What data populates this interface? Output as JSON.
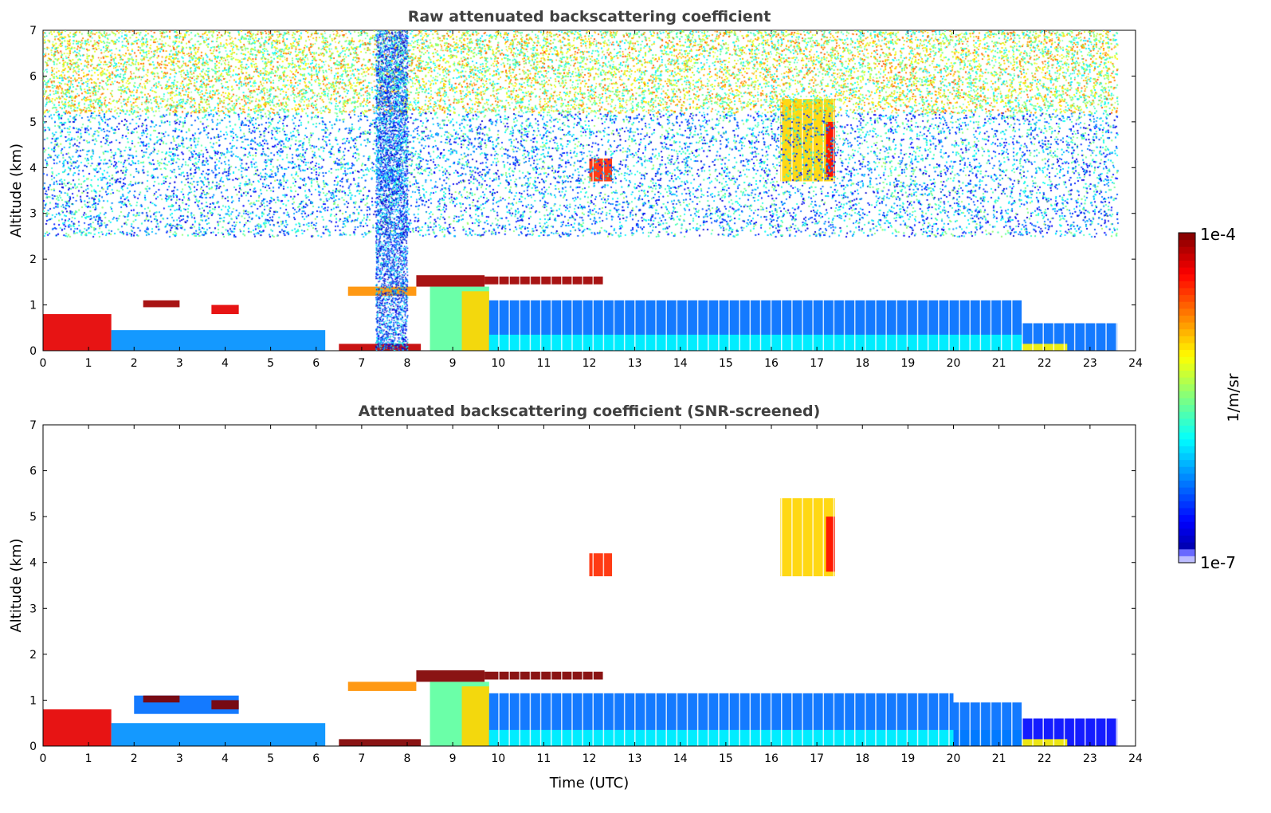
{
  "chart_data": {
    "type": "heatmap",
    "colorbar": {
      "label": "1/m/sr",
      "min_label": "1e-7",
      "max_label": "1e-4",
      "log_min": -7,
      "log_max": -4,
      "scale": "log",
      "colormap": "jet"
    },
    "panels": [
      {
        "title": "Raw attenuated backscattering coefficient",
        "xlabel": "",
        "ylabel": "Altitude (km)",
        "xlim": [
          0,
          24
        ],
        "ylim": [
          0,
          7
        ],
        "xticks": [
          "0",
          "1",
          "2",
          "3",
          "4",
          "5",
          "6",
          "7",
          "8",
          "9",
          "10",
          "11",
          "12",
          "13",
          "14",
          "15",
          "16",
          "17",
          "18",
          "19",
          "20",
          "21",
          "22",
          "23",
          "24"
        ],
        "yticks": [
          "0",
          "1",
          "2",
          "3",
          "4",
          "5",
          "6",
          "7"
        ],
        "noise": true,
        "features": [
          {
            "t0": 0,
            "t1": 23.6,
            "z0": 5.2,
            "z1": 7,
            "log_beta": -5.3,
            "density": 0.55
          },
          {
            "t0": 0,
            "t1": 23.6,
            "z0": 2.5,
            "z1": 5.2,
            "log_beta": -6.1,
            "density": 0.35
          },
          {
            "t0": 7.3,
            "t1": 8.0,
            "z0": 0,
            "z1": 7,
            "log_beta": -6.4,
            "density": 0.6
          },
          {
            "t0": 0,
            "t1": 1.5,
            "z0": 0,
            "z1": 0.8,
            "log_beta": -4.3
          },
          {
            "t0": 1.5,
            "t1": 6.2,
            "z0": 0,
            "z1": 0.45,
            "log_beta": -6.2
          },
          {
            "t0": 2.2,
            "t1": 3.0,
            "z0": 0.95,
            "z1": 1.1,
            "log_beta": -4.1
          },
          {
            "t0": 3.7,
            "t1": 4.3,
            "z0": 0.8,
            "z1": 1.0,
            "log_beta": -4.3
          },
          {
            "t0": 6.7,
            "t1": 8.2,
            "z0": 1.2,
            "z1": 1.4,
            "log_beta": -4.8
          },
          {
            "t0": 6.5,
            "t1": 8.3,
            "z0": 0,
            "z1": 0.15,
            "log_beta": -4.2
          },
          {
            "t0": 8.5,
            "t1": 9.8,
            "z0": 0,
            "z1": 1.4,
            "log_beta": -5.6
          },
          {
            "t0": 9.2,
            "t1": 9.8,
            "z0": 0,
            "z1": 1.3,
            "log_beta": -5.0
          },
          {
            "t0": 8.2,
            "t1": 9.7,
            "z0": 1.4,
            "z1": 1.65,
            "log_beta": -4.1
          },
          {
            "t0": 9.7,
            "t1": 12.3,
            "z0": 1.45,
            "z1": 1.62,
            "log_beta": -4.1
          },
          {
            "t0": 9.8,
            "t1": 21.5,
            "z0": 0,
            "z1": 1.1,
            "log_beta": -6.3
          },
          {
            "t0": 9.8,
            "t1": 21.5,
            "z0": 0,
            "z1": 0.35,
            "log_beta": -5.9
          },
          {
            "t0": 21.5,
            "t1": 23.6,
            "z0": 0,
            "z1": 0.6,
            "log_beta": -6.3
          },
          {
            "t0": 21.5,
            "t1": 22.5,
            "z0": 0,
            "z1": 0.15,
            "log_beta": -5.1
          },
          {
            "t0": 12.0,
            "t1": 12.5,
            "z0": 3.7,
            "z1": 4.2,
            "log_beta": -4.5
          },
          {
            "t0": 16.2,
            "t1": 17.4,
            "z0": 3.7,
            "z1": 5.5,
            "log_beta": -5.0
          },
          {
            "t0": 17.2,
            "t1": 17.4,
            "z0": 3.8,
            "z1": 5.0,
            "log_beta": -4.4
          }
        ]
      },
      {
        "title": "Attenuated backscattering coefficient (SNR-screened)",
        "xlabel": "Time (UTC)",
        "ylabel": "Altitude (km)",
        "xlim": [
          0,
          24
        ],
        "ylim": [
          0,
          7
        ],
        "xticks": [
          "0",
          "1",
          "2",
          "3",
          "4",
          "5",
          "6",
          "7",
          "8",
          "9",
          "10",
          "11",
          "12",
          "13",
          "14",
          "15",
          "16",
          "17",
          "18",
          "19",
          "20",
          "21",
          "22",
          "23",
          "24"
        ],
        "yticks": [
          "0",
          "1",
          "2",
          "3",
          "4",
          "5",
          "6",
          "7"
        ],
        "noise": false,
        "features": [
          {
            "t0": 0,
            "t1": 1.5,
            "z0": 0,
            "z1": 0.8,
            "log_beta": -4.3
          },
          {
            "t0": 1.5,
            "t1": 6.2,
            "z0": 0,
            "z1": 0.5,
            "log_beta": -6.2
          },
          {
            "t0": 2.0,
            "t1": 4.3,
            "z0": 0.7,
            "z1": 1.1,
            "log_beta": -6.3
          },
          {
            "t0": 2.2,
            "t1": 3.0,
            "z0": 0.95,
            "z1": 1.1,
            "log_beta": -3.8
          },
          {
            "t0": 3.7,
            "t1": 4.3,
            "z0": 0.8,
            "z1": 1.0,
            "log_beta": -3.8
          },
          {
            "t0": 6.7,
            "t1": 8.2,
            "z0": 1.2,
            "z1": 1.4,
            "log_beta": -4.8
          },
          {
            "t0": 6.5,
            "t1": 8.3,
            "z0": 0,
            "z1": 0.15,
            "log_beta": -3.8
          },
          {
            "t0": 8.5,
            "t1": 9.8,
            "z0": 0,
            "z1": 1.4,
            "log_beta": -5.6
          },
          {
            "t0": 9.2,
            "t1": 9.8,
            "z0": 0,
            "z1": 1.3,
            "log_beta": -5.0
          },
          {
            "t0": 8.2,
            "t1": 9.7,
            "z0": 1.4,
            "z1": 1.65,
            "log_beta": -3.8
          },
          {
            "t0": 9.7,
            "t1": 12.3,
            "z0": 1.45,
            "z1": 1.62,
            "log_beta": -3.8
          },
          {
            "t0": 9.8,
            "t1": 20.0,
            "z0": 0,
            "z1": 1.15,
            "log_beta": -6.3
          },
          {
            "t0": 9.8,
            "t1": 21.5,
            "z0": 0,
            "z1": 0.35,
            "log_beta": -5.9
          },
          {
            "t0": 20.0,
            "t1": 21.5,
            "z0": 0,
            "z1": 0.95,
            "log_beta": -6.3
          },
          {
            "t0": 21.5,
            "t1": 23.6,
            "z0": 0,
            "z1": 0.6,
            "log_beta": -6.6
          },
          {
            "t0": 21.5,
            "t1": 22.5,
            "z0": 0,
            "z1": 0.15,
            "log_beta": -5.1
          },
          {
            "t0": 12.0,
            "t1": 12.5,
            "z0": 3.7,
            "z1": 4.2,
            "log_beta": -4.5
          },
          {
            "t0": 16.2,
            "t1": 17.4,
            "z0": 3.7,
            "z1": 5.4,
            "log_beta": -5.0
          },
          {
            "t0": 17.2,
            "t1": 17.4,
            "z0": 3.8,
            "z1": 5.0,
            "log_beta": -4.4
          }
        ]
      }
    ]
  }
}
